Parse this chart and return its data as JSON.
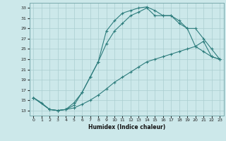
{
  "xlabel": "Humidex (Indice chaleur)",
  "bg_color": "#cce8ea",
  "grid_color": "#aacdd0",
  "line_color": "#2e7d7d",
  "xlim": [
    -0.5,
    23.5
  ],
  "ylim": [
    12,
    34
  ],
  "xticks": [
    0,
    1,
    2,
    3,
    4,
    5,
    6,
    7,
    8,
    9,
    10,
    11,
    12,
    13,
    14,
    15,
    16,
    17,
    18,
    19,
    20,
    21,
    22,
    23
  ],
  "yticks": [
    13,
    15,
    17,
    19,
    21,
    23,
    25,
    27,
    29,
    31,
    33
  ],
  "curve1_x": [
    0,
    1,
    2,
    3,
    4,
    5,
    6,
    7,
    8,
    9,
    10,
    11,
    12,
    13,
    14,
    15,
    16,
    17,
    18,
    19,
    20,
    21,
    22,
    23
  ],
  "curve1_y": [
    15.5,
    14.5,
    13.2,
    13.0,
    13.2,
    14.5,
    16.5,
    19.5,
    22.5,
    28.5,
    30.5,
    32.0,
    32.5,
    33.0,
    33.2,
    32.5,
    31.5,
    31.5,
    30.0,
    29.0,
    25.5,
    24.5,
    23.5,
    23.0
  ],
  "curve2_x": [
    0,
    2,
    3,
    4,
    5,
    6,
    7,
    8,
    9,
    10,
    11,
    12,
    13,
    14,
    15,
    16,
    17,
    18,
    19,
    20,
    21,
    22,
    23
  ],
  "curve2_y": [
    15.5,
    13.2,
    13.0,
    13.2,
    14.0,
    16.5,
    19.5,
    22.5,
    26.0,
    28.5,
    30.0,
    31.5,
    32.2,
    33.0,
    31.5,
    31.5,
    31.5,
    30.5,
    29.0,
    29.0,
    27.0,
    25.0,
    23.0
  ],
  "curve3_x": [
    0,
    2,
    3,
    4,
    5,
    6,
    7,
    8,
    9,
    10,
    11,
    12,
    13,
    14,
    15,
    16,
    17,
    18,
    19,
    20,
    21,
    22,
    23
  ],
  "curve3_y": [
    15.5,
    13.2,
    13.0,
    13.2,
    13.5,
    14.2,
    15.0,
    16.0,
    17.2,
    18.5,
    19.5,
    20.5,
    21.5,
    22.5,
    23.0,
    23.5,
    24.0,
    24.5,
    25.0,
    25.5,
    26.5,
    23.5,
    23.0
  ]
}
